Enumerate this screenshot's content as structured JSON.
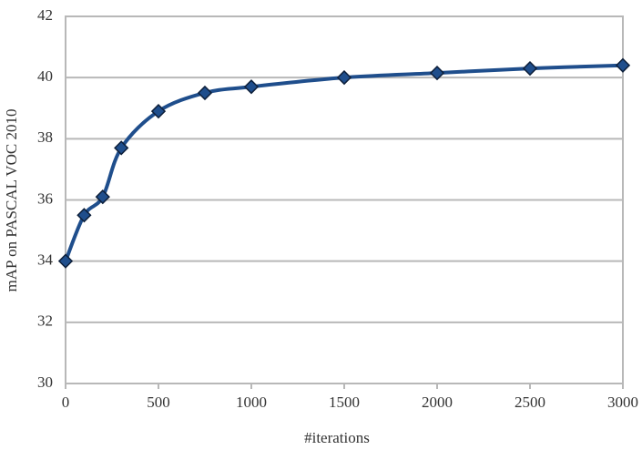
{
  "chart_data": {
    "type": "line",
    "x": [
      0,
      100,
      200,
      300,
      500,
      750,
      1000,
      1500,
      2000,
      2500,
      3000
    ],
    "series": [
      {
        "name": "mAP",
        "color": "#1f4e8c",
        "values": [
          34,
          35.5,
          36.1,
          37.7,
          38.9,
          39.5,
          39.7,
          40.0,
          40.15,
          40.3,
          40.4
        ]
      }
    ],
    "xlabel": "#iterations",
    "ylabel": "mAP on PASCAL VOC 2010",
    "xlim": [
      0,
      3000
    ],
    "xticks": [
      0,
      500,
      1000,
      1500,
      2000,
      2500,
      3000
    ],
    "ylim": [
      30,
      42
    ],
    "yticks": [
      30,
      32,
      34,
      36,
      38,
      40,
      42
    ],
    "grid": true,
    "smooth": true,
    "marker": "diamond"
  }
}
